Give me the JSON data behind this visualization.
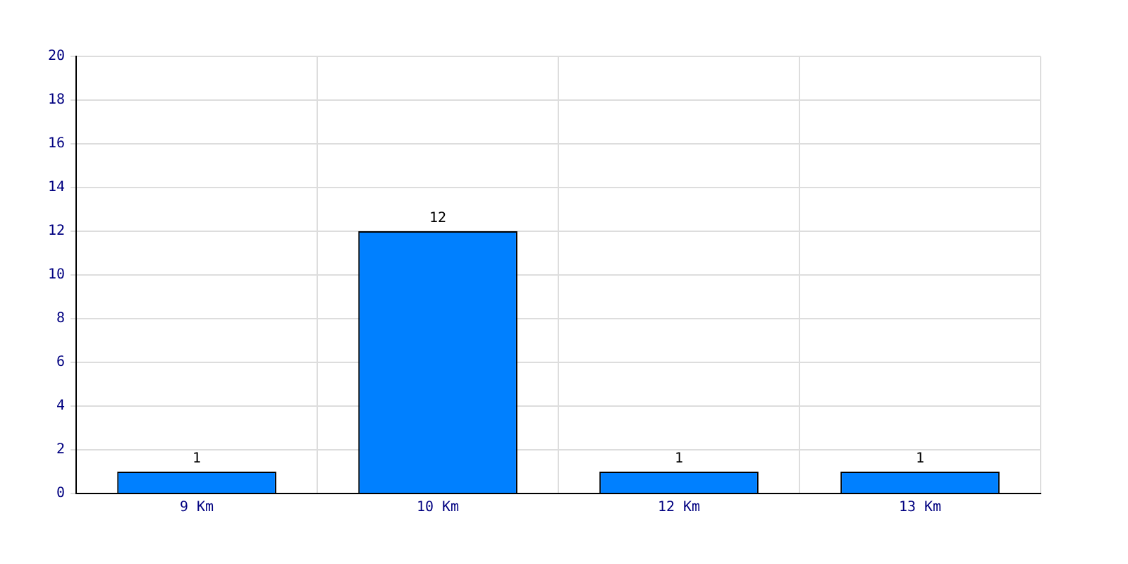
{
  "chart_data": {
    "type": "bar",
    "categories": [
      "9 Km",
      "10 Km",
      "12 Km",
      "13 Km"
    ],
    "values": [
      1,
      12,
      1,
      1
    ],
    "color": "#0080ff",
    "ylim": [
      0,
      20
    ],
    "yticks": [
      0,
      2,
      4,
      6,
      8,
      10,
      12,
      14,
      16,
      18,
      20
    ],
    "grid": true,
    "data_labels": true
  }
}
